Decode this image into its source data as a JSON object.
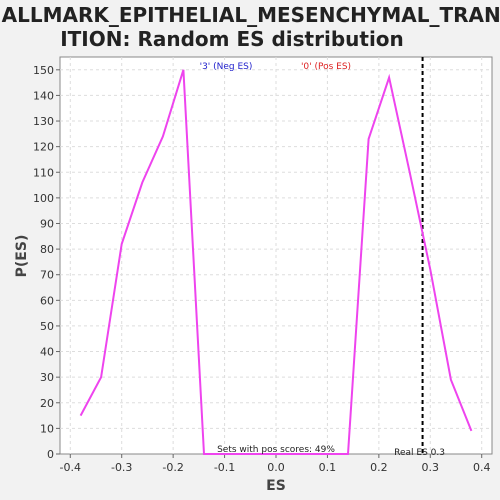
{
  "chart_data": {
    "type": "line",
    "title_lines": [
      "HALLMARK_EPITHELIAL_MESENCHYMAL_TRANS",
      "ITION: Random ES distribution"
    ],
    "xlabel": "ES",
    "ylabel": "P(ES)",
    "xlim": [
      -0.42,
      0.42
    ],
    "ylim": [
      0,
      155
    ],
    "xticks": [
      "-0.4",
      "-0.3",
      "-0.2",
      "-0.1",
      "0.0",
      "0.1",
      "0.2",
      "0.3",
      "0.4"
    ],
    "yticks": [
      "0",
      "10",
      "20",
      "30",
      "40",
      "50",
      "60",
      "70",
      "80",
      "90",
      "100",
      "110",
      "120",
      "130",
      "140",
      "150"
    ],
    "grid": true,
    "series": [
      {
        "color": "#ee44ee",
        "x": [
          -0.38,
          -0.34,
          -0.3,
          -0.26,
          -0.22,
          -0.18,
          -0.14,
          0.14,
          0.18,
          0.22,
          0.26,
          0.3,
          0.34,
          0.38
        ],
        "y": [
          15,
          30,
          82,
          106,
          124,
          150,
          0,
          0,
          123,
          147,
          110,
          72,
          29,
          9
        ]
      }
    ],
    "reference_line": {
      "x": 0.285,
      "label": "Real ES 0.3",
      "color": "#000000"
    },
    "legend": [
      {
        "label": "'3' (Neg ES)",
        "color": "#2222cc"
      },
      {
        "label": "'0' (Pos ES)",
        "color": "#dd2222"
      }
    ],
    "annotation": "Sets with pos scores: 49%"
  }
}
